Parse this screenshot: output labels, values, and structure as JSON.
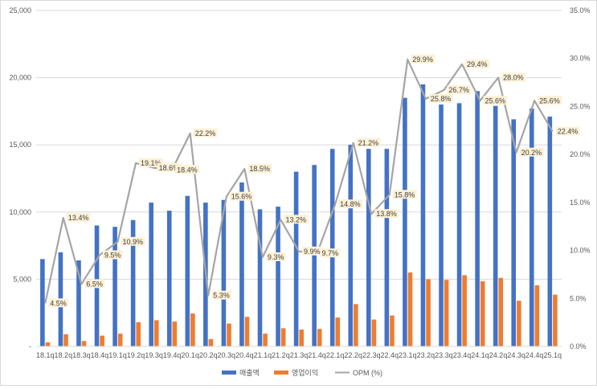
{
  "colors": {
    "revenue": "#4472c4",
    "operating_profit": "#ed7d31",
    "opm": "#a5a5a5",
    "gridline": "#d9d9d9",
    "label_box": "#fdf1d6",
    "tick_text": "#595959"
  },
  "chart_data": {
    "type": "bar",
    "combo": "bar+line (secondary axis)",
    "categories": [
      "18.1q",
      "18.2q",
      "18.3q",
      "18.4q",
      "19.1q",
      "19.2q",
      "19.3q",
      "19.4q",
      "20.1q",
      "20.2q",
      "20.3q",
      "20.4q",
      "21.1q",
      "21.2q",
      "21.3q",
      "21.4q",
      "22.1q",
      "22.2q",
      "22.3q",
      "22.4q",
      "23.1q",
      "23.2q",
      "23.3q",
      "23.4q",
      "24.1q",
      "24.2q",
      "24.3q",
      "24.4q",
      "25.1q"
    ],
    "series": [
      {
        "name": "매출액",
        "type": "bar",
        "axis": "left",
        "values": [
          6500,
          7000,
          6400,
          9000,
          8900,
          9400,
          10700,
          10100,
          11200,
          10700,
          10900,
          12200,
          10200,
          10400,
          13000,
          13500,
          14700,
          15000,
          14700,
          14700,
          18500,
          19500,
          18000,
          18100,
          19000,
          17900,
          16900,
          17700,
          17100
        ]
      },
      {
        "name": "영업이익",
        "type": "bar",
        "axis": "left",
        "values": [
          300,
          900,
          400,
          800,
          950,
          1800,
          1950,
          1850,
          2450,
          550,
          1700,
          2200,
          950,
          1350,
          1250,
          1300,
          2150,
          3150,
          2000,
          2300,
          5500,
          5000,
          4950,
          5300,
          4850,
          5100,
          3400,
          4550,
          3850
        ]
      },
      {
        "name": "OPM (%)",
        "type": "line",
        "axis": "right",
        "values": [
          4.5,
          13.4,
          6.5,
          9.5,
          10.9,
          19.1,
          18.6,
          18.4,
          22.2,
          5.3,
          15.6,
          18.5,
          9.3,
          13.2,
          9.9,
          9.7,
          14.8,
          21.2,
          13.8,
          15.8,
          29.9,
          25.8,
          26.7,
          29.4,
          25.6,
          28.0,
          20.2,
          25.6,
          22.4
        ],
        "labels": [
          "4.5%",
          "13.4%",
          "6.5%",
          "9.5%",
          "10.9%",
          "19.1%",
          "18.6%",
          "18.4%",
          "22.2%",
          "5.3%",
          "15.6%",
          "18.5%",
          "9.3%",
          "13.2%",
          "9.9%",
          "9.7%",
          "14.8%",
          "21.2%",
          "13.8%",
          "15.8%",
          "29.9%",
          "25.8%",
          "26.7%",
          "29.4%",
          "25.6%",
          "28.0%",
          "20.2%",
          "25.6%",
          "22.4%"
        ]
      }
    ],
    "ylim": [
      0,
      25000
    ],
    "y_ticks": [
      "-",
      "5,000",
      "10,000",
      "15,000",
      "20,000",
      "25,000"
    ],
    "y2lim": [
      0,
      35
    ],
    "y2_ticks": [
      "0.0%",
      "5.0%",
      "10.0%",
      "15.0%",
      "20.0%",
      "25.0%",
      "30.0%",
      "35.0%"
    ],
    "grid": true,
    "legend_position": "bottom",
    "title": "",
    "xlabel": "",
    "ylabel": "",
    "y2label": ""
  }
}
